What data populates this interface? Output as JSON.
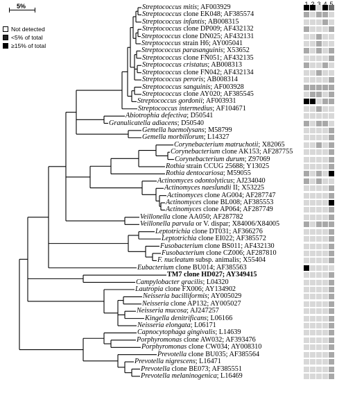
{
  "scale": {
    "label": "5%"
  },
  "legend": [
    {
      "label": "Not detected",
      "level": "none"
    },
    {
      "label": "<5% of total",
      "level": "low"
    },
    {
      "label": "≥15% of total",
      "level": "high"
    }
  ],
  "columns": [
    "1",
    "2",
    "3",
    "4",
    "5"
  ],
  "colors": {
    "none": "#ffffff",
    "low": "#a8a8a8",
    "mid": "#6e6e6e",
    "high": "#000000",
    "empty": "#d8d8d8",
    "line": "#000000"
  },
  "taxa": [
    {
      "name": "Streptococcus mitis",
      "suffix": "; AF003929",
      "cells": [
        "high",
        "high",
        "none",
        "high",
        "mid"
      ]
    },
    {
      "name": "Streptococcus",
      "suffix": " clone EK048; AF385574",
      "cells": [
        "low",
        "none",
        "low",
        "low",
        "none"
      ]
    },
    {
      "name": "Streptococcus infantis",
      "suffix": "; AB008315",
      "cells": [
        "none",
        "none",
        "none",
        "low",
        "none"
      ]
    },
    {
      "name": "Streptococcus",
      "suffix": " clone DP009; AF432132",
      "cells": [
        "low",
        "none",
        "none",
        "none",
        "low"
      ]
    },
    {
      "name": "Streptococcus",
      "suffix": " clone DN025; AF432131",
      "cells": [
        "none",
        "none",
        "low",
        "none",
        "none"
      ]
    },
    {
      "name": "Streptococcus",
      "suffix": " strain H6; AY005041",
      "cells": [
        "none",
        "none",
        "low",
        "none",
        "none"
      ]
    },
    {
      "name": "Streptococcus parasanguinis",
      "suffix": "; X53652",
      "cells": [
        "low",
        "none",
        "low",
        "none",
        "low"
      ]
    },
    {
      "name": "Streptococcus",
      "suffix": " clone FN051; AF432135",
      "cells": [
        "none",
        "none",
        "none",
        "none",
        "low"
      ]
    },
    {
      "name": "Streptococcus cristatus",
      "suffix": "; AB008313",
      "cells": [
        "low",
        "none",
        "none",
        "low",
        "none"
      ]
    },
    {
      "name": "Streptococcus",
      "suffix": " clone FN042; AF432134",
      "cells": [
        "none",
        "none",
        "low",
        "none",
        "none"
      ]
    },
    {
      "name": "Streptococcus peroris",
      "suffix": "; AB008314",
      "cells": [
        "none",
        "none",
        "none",
        "none",
        "low"
      ]
    },
    {
      "name": "Streptococcus sanguinis",
      "suffix": "; AF003928",
      "cells": [
        "low",
        "low",
        "low",
        "low",
        "low"
      ]
    },
    {
      "name": "Streptococcus",
      "suffix": " clone AY020; AF385545",
      "cells": [
        "none",
        "low",
        "low",
        "none",
        "low"
      ]
    },
    {
      "name": "Streptococcus gordonii",
      "suffix": "; AF003931",
      "cells": [
        "high",
        "high",
        "none",
        "low",
        "low"
      ]
    },
    {
      "name": "Streptococcus intermedius",
      "suffix": "; AF104671",
      "cells": [
        "none",
        "none",
        "low",
        "none",
        "none"
      ]
    },
    {
      "name": "Abiotrophia defectiva",
      "suffix": "; D50541",
      "cells": [
        "none",
        "none",
        "none",
        "none",
        "none"
      ]
    },
    {
      "name": "Granulicatella adiacens",
      "suffix": "; D50540",
      "cells": [
        "low",
        "none",
        "low",
        "low",
        "none"
      ]
    },
    {
      "name": "Gemella haemolysans",
      "suffix": "; M58799",
      "cells": [
        "none",
        "none",
        "none",
        "none",
        "low"
      ]
    },
    {
      "name": "Gemella morbillorum",
      "suffix": "; L14327",
      "cells": [
        "none",
        "none",
        "none",
        "none",
        "low"
      ]
    },
    {
      "name": "Corynebacterium matruchotii",
      "suffix": "; X82065",
      "cells": [
        "none",
        "none",
        "low",
        "none",
        "low"
      ]
    },
    {
      "name": "Corynebacterium",
      "suffix": " clone AK153; AF287755",
      "cells": [
        "none",
        "none",
        "none",
        "none",
        "low"
      ]
    },
    {
      "name": "Corynebacterium durum",
      "suffix": "; Z97069",
      "cells": [
        "none",
        "none",
        "none",
        "none",
        "low"
      ]
    },
    {
      "name": "Rothia",
      "suffix": " strain CCUG 25688; Y13025",
      "cells": [
        "none",
        "none",
        "none",
        "none",
        "low"
      ]
    },
    {
      "name": "Rothia dentocariosa",
      "suffix": "; M59055",
      "cells": [
        "low",
        "none",
        "low",
        "none",
        "high"
      ]
    },
    {
      "name": "Actinomyces odontolyticus",
      "suffix": "; AJ234040",
      "cells": [
        "low",
        "none",
        "low",
        "none",
        "none"
      ]
    },
    {
      "name": "Actinomyces naeslundii",
      "suffix": " II; X53225",
      "cells": [
        "none",
        "none",
        "none",
        "none",
        "low"
      ]
    },
    {
      "name": "Actinomyces",
      "suffix": " clone AG004; AF287747",
      "cells": [
        "none",
        "none",
        "none",
        "none",
        "low"
      ]
    },
    {
      "name": "Actinomyces",
      "suffix": " clone BL008; AF385553",
      "cells": [
        "none",
        "none",
        "none",
        "none",
        "high"
      ]
    },
    {
      "name": "Actinomyces",
      "suffix": " clone AP064; AF287749",
      "cells": [
        "none",
        "none",
        "none",
        "none",
        "low"
      ]
    },
    {
      "name": "Veillonella",
      "suffix": " clone AA050; AF287782",
      "cells": [
        "none",
        "none",
        "none",
        "none",
        "low"
      ]
    },
    {
      "name": "Veillonella parvula",
      "suffix": " or V. dispar; X84006/X84005",
      "cells": [
        "low",
        "none",
        "low",
        "low",
        "low"
      ]
    },
    {
      "name": "Leptotrichia",
      "suffix": " clone DT031; AF366276",
      "cells": [
        "none",
        "none",
        "none",
        "none",
        "low"
      ]
    },
    {
      "name": "Leptotrichia",
      "suffix": " clone EI022; AF385572",
      "cells": [
        "none",
        "none",
        "none",
        "none",
        "low"
      ]
    },
    {
      "name": "Fusobacterium",
      "suffix": " clone BS011; AF432130",
      "cells": [
        "none",
        "none",
        "none",
        "none",
        "low"
      ]
    },
    {
      "name": "Fusobacterium",
      "suffix": " clone CZ006; AF287810",
      "cells": [
        "none",
        "none",
        "none",
        "none",
        "low"
      ]
    },
    {
      "name": "F. nucleatum",
      "suffix": " subsp. animalis; X55404",
      "cells": [
        "none",
        "none",
        "none",
        "none",
        "low"
      ]
    },
    {
      "name": "Eubacterium",
      "suffix": " clone BU014; AF385563",
      "cells": [
        "high",
        "none",
        "none",
        "none",
        "none"
      ]
    },
    {
      "name": "TM7 clone HD027",
      "suffix": "; AY349415",
      "cells": [
        "none",
        "none",
        "none",
        "none",
        "low"
      ],
      "bold": true
    },
    {
      "name": "Campylobacter gracilis",
      "suffix": "; L04320",
      "cells": [
        "none",
        "none",
        "none",
        "none",
        "low"
      ]
    },
    {
      "name": "Lautropia",
      "suffix": " clone FX006; AY134902",
      "cells": [
        "none",
        "none",
        "none",
        "none",
        "low"
      ]
    },
    {
      "name": "Neisseria bacilliformis",
      "suffix": "; AY005029",
      "cells": [
        "none",
        "none",
        "none",
        "none",
        "low"
      ]
    },
    {
      "name": "Neisseria",
      "suffix": " clone AP132; AY005027",
      "cells": [
        "none",
        "none",
        "none",
        "none",
        "low"
      ]
    },
    {
      "name": "Neisseria mucosa",
      "suffix": "; AJ247257",
      "cells": [
        "none",
        "none",
        "none",
        "none",
        "low"
      ]
    },
    {
      "name": "Kingella denitrificans",
      "suffix": "; L06166",
      "cells": [
        "none",
        "none",
        "none",
        "none",
        "low"
      ]
    },
    {
      "name": "Neisseria elongata",
      "suffix": "; L06171",
      "cells": [
        "none",
        "none",
        "none",
        "none",
        "low"
      ]
    },
    {
      "name": "Capnocytophaga gingivalis",
      "suffix": "; L14639",
      "cells": [
        "none",
        "none",
        "none",
        "none",
        "low"
      ]
    },
    {
      "name": "Porphyromonas",
      "suffix": " clone AW032; AF393476",
      "cells": [
        "none",
        "none",
        "none",
        "none",
        "low"
      ]
    },
    {
      "name": "Porphyromonas",
      "suffix": " clone CW034; AY008310",
      "cells": [
        "none",
        "none",
        "none",
        "none",
        "low"
      ]
    },
    {
      "name": "Prevotella",
      "suffix": " clone BU035; AF385564",
      "cells": [
        "none",
        "none",
        "none",
        "none",
        "low"
      ]
    },
    {
      "name": "Prevotella nigrescens",
      "suffix": "; L16471",
      "cells": [
        "none",
        "none",
        "none",
        "none",
        "low"
      ]
    },
    {
      "name": "Prevotella",
      "suffix": " clone BE073; AF385551",
      "cells": [
        "none",
        "none",
        "none",
        "none",
        "low"
      ]
    },
    {
      "name": "Prevotella melaninogenica",
      "suffix": "; L16469",
      "cells": [
        "none",
        "none",
        "none",
        "none",
        "low"
      ]
    }
  ]
}
